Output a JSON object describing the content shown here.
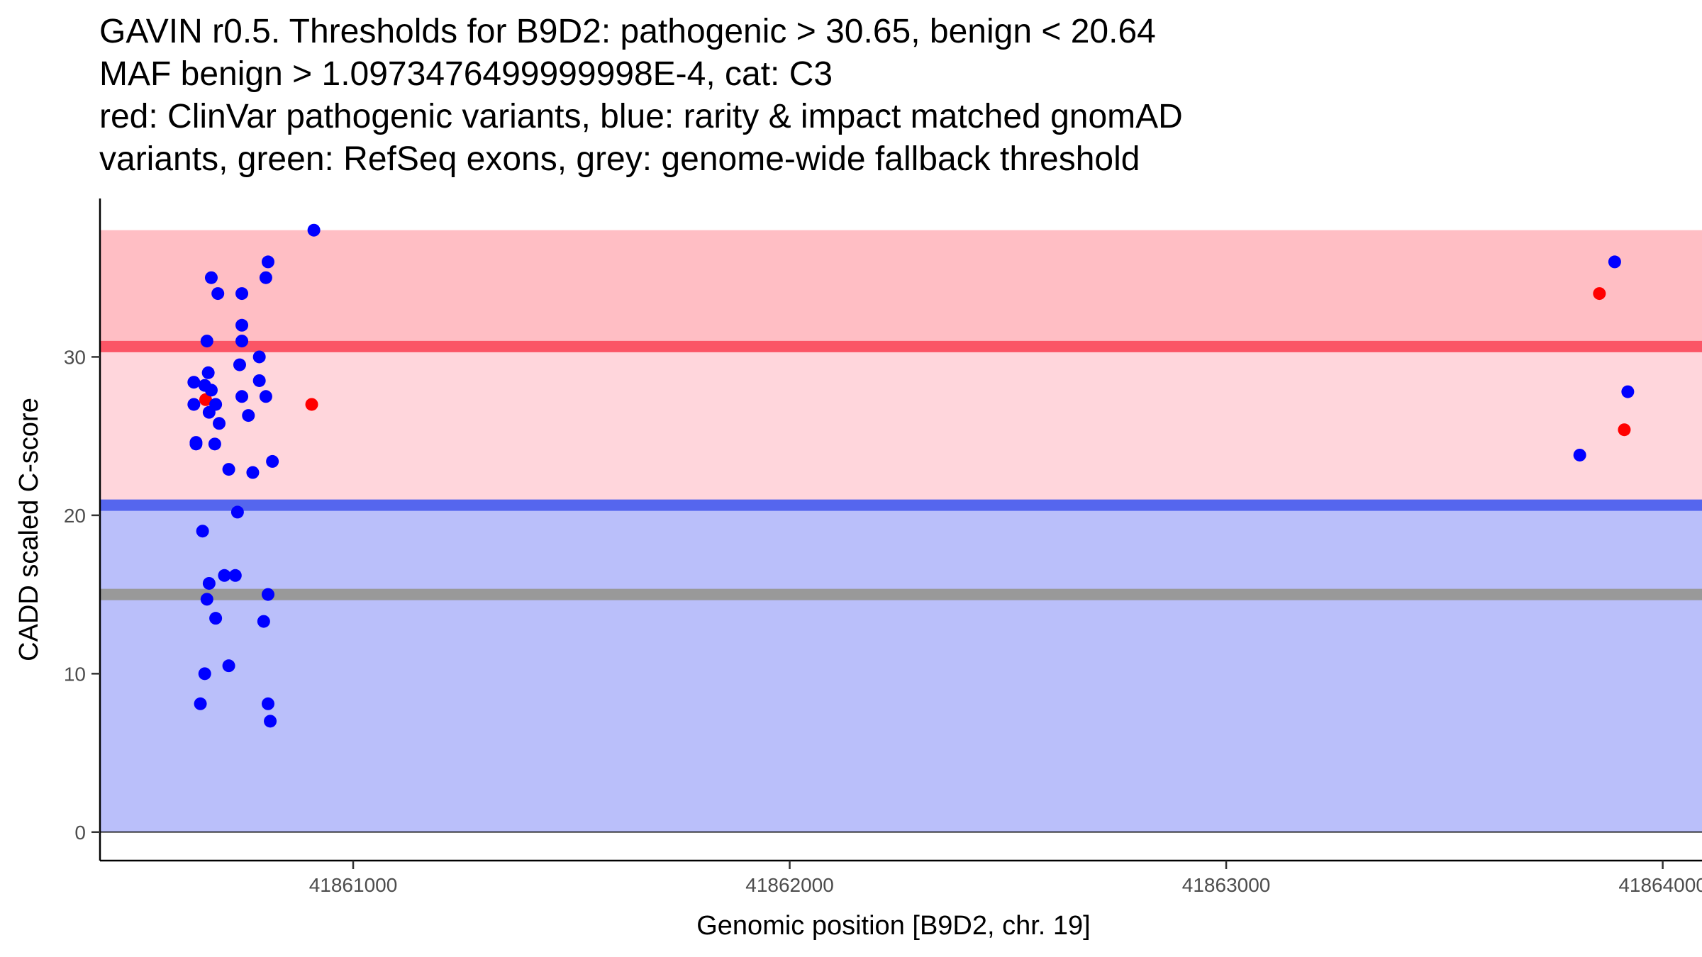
{
  "chart_data": {
    "type": "scatter",
    "title_lines": [
      "GAVIN r0.5. Thresholds for B9D2: pathogenic > 30.65, benign < 20.64",
      "MAF benign > 1.0973476499999998E-4, cat: C3",
      "red: ClinVar pathogenic variants, blue: rarity & impact matched gnomAD",
      "variants, green: RefSeq exons, grey: genome-wide fallback threshold"
    ],
    "xlabel": "Genomic position [B9D2, chr. 19]",
    "ylabel": "CADD scaled C-score",
    "xlim": [
      41860420,
      41864090
    ],
    "ylim": [
      -1.8,
      40
    ],
    "x_ticks": [
      41861000,
      41862000,
      41863000,
      41864000
    ],
    "x_tick_labels": [
      "41861000",
      "41862000",
      "41863000",
      "41864000"
    ],
    "y_ticks": [
      0,
      10,
      20,
      30
    ],
    "y_tick_labels": [
      "0",
      "10",
      "20",
      "30"
    ],
    "bands": [
      {
        "name": "benign-region",
        "y0": 0,
        "y1": 20.64,
        "color": "#babffa"
      },
      {
        "name": "intermediate-region",
        "y0": 20.64,
        "y1": 30.65,
        "color": "#ffd6dc"
      },
      {
        "name": "pathogenic-region",
        "y0": 30.65,
        "y1": 38,
        "color": "#ffbec4"
      }
    ],
    "band_x": [
      41860420,
      41864090
    ],
    "threshold_lines": [
      {
        "name": "benign-threshold",
        "y": 20.64,
        "color": "#5566ee"
      },
      {
        "name": "pathogenic-threshold",
        "y": 30.65,
        "color": "#fb5566"
      },
      {
        "name": "genome-wide-fallback-threshold",
        "y": 15,
        "color": "#999999"
      }
    ],
    "series": [
      {
        "name": "ClinVar pathogenic",
        "color": "#ff0000",
        "points": [
          [
            41860662,
            27.3
          ],
          [
            41860905,
            27.0
          ],
          [
            41863855,
            34.0
          ],
          [
            41863912,
            25.4
          ]
        ]
      },
      {
        "name": "gnomAD matched",
        "color": "#0000ff",
        "points": [
          [
            41860910,
            38.0
          ],
          [
            41860805,
            36.0
          ],
          [
            41860800,
            35.0
          ],
          [
            41860675,
            35.0
          ],
          [
            41860690,
            34.0
          ],
          [
            41860745,
            34.0
          ],
          [
            41860745,
            32.0
          ],
          [
            41860665,
            31.0
          ],
          [
            41860745,
            31.0
          ],
          [
            41860785,
            30.0
          ],
          [
            41860740,
            29.5
          ],
          [
            41860668,
            29.0
          ],
          [
            41860785,
            28.5
          ],
          [
            41860635,
            28.4
          ],
          [
            41860660,
            28.2
          ],
          [
            41860675,
            27.9
          ],
          [
            41860745,
            27.5
          ],
          [
            41860800,
            27.5
          ],
          [
            41860635,
            27.0
          ],
          [
            41860685,
            27.0
          ],
          [
            41860670,
            26.5
          ],
          [
            41860760,
            26.3
          ],
          [
            41860693,
            25.8
          ],
          [
            41860640,
            24.6
          ],
          [
            41860640,
            24.5
          ],
          [
            41860683,
            24.5
          ],
          [
            41860815,
            23.4
          ],
          [
            41860715,
            22.9
          ],
          [
            41860770,
            22.7
          ],
          [
            41860735,
            20.2
          ],
          [
            41860655,
            19.0
          ],
          [
            41860705,
            16.2
          ],
          [
            41860730,
            16.2
          ],
          [
            41860670,
            15.7
          ],
          [
            41860805,
            15.0
          ],
          [
            41860665,
            14.7
          ],
          [
            41860685,
            13.5
          ],
          [
            41860795,
            13.3
          ],
          [
            41860715,
            10.5
          ],
          [
            41860660,
            10.0
          ],
          [
            41860650,
            8.1
          ],
          [
            41860805,
            8.1
          ],
          [
            41860810,
            7.0
          ],
          [
            41863890,
            36.0
          ],
          [
            41863920,
            27.8
          ],
          [
            41863810,
            23.8
          ]
        ]
      }
    ]
  }
}
